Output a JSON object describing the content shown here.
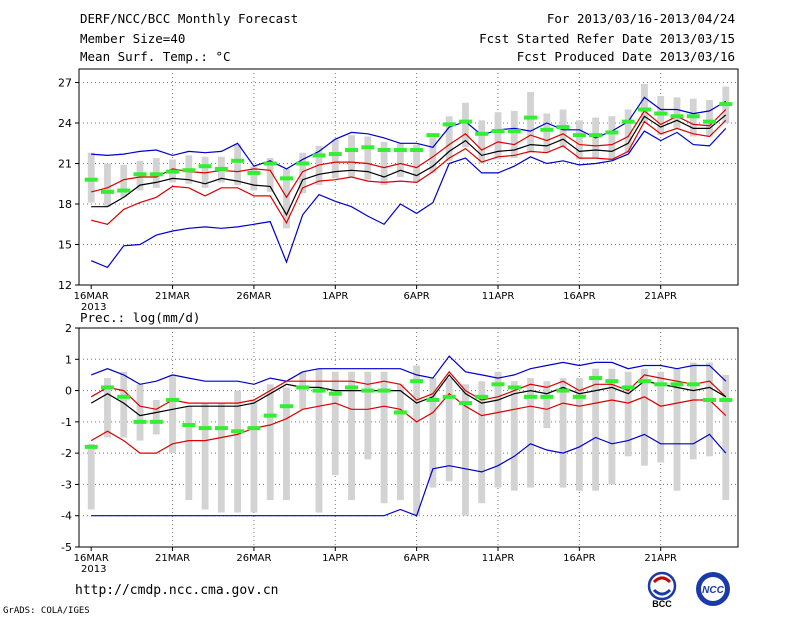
{
  "header": {
    "title": "DERF/NCC/BCC Monthly Forecast",
    "member_size": "Member Size=40",
    "variable_temp": "Mean Surf. Temp.: °C",
    "period": "For 2013/03/16-2013/04/24",
    "refer_date": "Fcst Started Refer Date 2013/03/15",
    "produced_date": "Fcst Produced Date 2013/03/16"
  },
  "footer": {
    "url": "http://cmdp.ncc.cma.gov.cn",
    "grads_credit": "GrADS: COLA/IGES",
    "logo_bcc_text": "BCC",
    "logo_ncc_text": "NCC"
  },
  "colors": {
    "box": "#d3d3d3",
    "median": "#33ee33",
    "mean": "#000000",
    "std": "#dd0000",
    "extreme": "#0000cc",
    "grid": "#777777"
  },
  "chart_data": [
    {
      "type": "line",
      "title": "Mean Surf. Temp.: °C",
      "x_tick_labels": [
        "16MAR\n2013",
        "21MAR",
        "26MAR",
        "1APR",
        "6APR",
        "11APR",
        "16APR",
        "21APR"
      ],
      "x_tick_days": [
        1,
        6,
        11,
        16,
        21,
        26,
        31,
        36
      ],
      "xlim": [
        1,
        40
      ],
      "ylim": [
        12,
        28
      ],
      "y_ticks": [
        12,
        15,
        18,
        21,
        24,
        27
      ],
      "days": [
        1,
        2,
        3,
        4,
        5,
        6,
        7,
        8,
        9,
        10,
        11,
        12,
        13,
        14,
        15,
        16,
        17,
        18,
        19,
        20,
        21,
        22,
        23,
        24,
        25,
        26,
        27,
        28,
        29,
        30,
        31,
        32,
        33,
        34,
        35,
        36,
        37,
        38,
        39,
        40
      ],
      "series": [
        {
          "name": "max",
          "values": [
            13.8,
            13.3,
            14.9,
            15.0,
            15.7,
            16.0,
            16.2,
            16.3,
            16.2,
            16.3,
            16.5,
            16.7,
            13.7,
            17.2,
            18.7,
            18.2,
            17.8,
            17.1,
            16.5,
            18.0,
            17.3,
            18.1,
            21.0,
            21.4,
            20.3,
            20.3,
            20.8,
            21.5,
            21.0,
            21.2,
            20.9,
            21.0,
            21.2,
            21.7,
            23.4,
            22.7,
            23.3,
            22.4,
            22.3,
            23.6
          ]
        },
        {
          "name": "mean_plus_std",
          "values": [
            18.9,
            19.2,
            19.8,
            20.0,
            20.0,
            20.6,
            20.4,
            20.3,
            20.5,
            20.4,
            20.6,
            20.5,
            18.5,
            20.4,
            20.9,
            21.1,
            21.1,
            21.0,
            20.7,
            21.0,
            20.7,
            21.5,
            22.4,
            23.2,
            22.0,
            22.6,
            22.4,
            23.1,
            22.7,
            23.2,
            22.4,
            22.3,
            22.4,
            23.0,
            24.9,
            23.9,
            24.5,
            23.9,
            23.8,
            25.0
          ]
        },
        {
          "name": "mean",
          "values": [
            17.8,
            17.8,
            18.5,
            19.4,
            19.6,
            19.9,
            19.8,
            19.5,
            19.9,
            19.7,
            19.4,
            19.3,
            17.2,
            19.8,
            20.2,
            20.4,
            20.5,
            20.4,
            20.0,
            20.5,
            20.1,
            20.8,
            21.9,
            22.7,
            21.6,
            21.9,
            22.0,
            22.4,
            22.3,
            22.8,
            21.9,
            22.0,
            21.9,
            22.5,
            24.5,
            23.7,
            24.2,
            23.6,
            23.6,
            24.6
          ]
        },
        {
          "name": "mean_minus_std",
          "values": [
            16.8,
            16.5,
            17.6,
            18.1,
            18.5,
            19.3,
            19.2,
            18.6,
            19.2,
            19.2,
            18.6,
            18.6,
            16.6,
            19.2,
            19.7,
            19.8,
            20.0,
            19.7,
            19.6,
            19.7,
            19.6,
            20.4,
            21.4,
            22.1,
            21.1,
            21.5,
            21.6,
            21.9,
            21.8,
            22.3,
            21.4,
            21.4,
            21.3,
            21.9,
            24.1,
            23.2,
            23.6,
            23.2,
            23.0,
            24.2
          ]
        },
        {
          "name": "min",
          "values": [
            21.7,
            21.6,
            21.7,
            21.9,
            22.0,
            21.6,
            21.9,
            21.8,
            21.9,
            22.5,
            20.8,
            21.2,
            20.6,
            21.3,
            21.9,
            22.8,
            23.3,
            23.2,
            22.9,
            22.5,
            22.5,
            22.2,
            23.7,
            24.1,
            23.1,
            23.5,
            23.6,
            23.4,
            24.0,
            23.5,
            23.5,
            22.9,
            23.4,
            24.1,
            25.9,
            25.0,
            25.0,
            24.7,
            24.9,
            25.6
          ]
        },
        {
          "name": "median",
          "values": [
            19.8,
            18.9,
            19.0,
            20.2,
            20.2,
            20.4,
            20.5,
            20.8,
            20.6,
            21.2,
            20.3,
            21.0,
            19.9,
            21.0,
            21.6,
            21.7,
            22.0,
            22.2,
            22.0,
            22.0,
            22.0,
            23.1,
            23.9,
            24.1,
            23.2,
            23.4,
            23.4,
            24.4,
            23.5,
            23.7,
            23.1,
            23.1,
            23.3,
            24.1,
            25.0,
            24.7,
            24.5,
            24.5,
            24.1,
            25.4
          ]
        },
        {
          "name": "box_low",
          "values": [
            18.1,
            17.8,
            18.5,
            19.0,
            19.2,
            19.6,
            19.5,
            19.2,
            19.6,
            19.4,
            19.0,
            18.9,
            16.2,
            18.8,
            19.4,
            19.9,
            20.0,
            19.8,
            19.4,
            20.0,
            19.6,
            20.3,
            21.2,
            22.2,
            21.0,
            21.3,
            21.4,
            21.8,
            21.8,
            22.2,
            21.3,
            21.4,
            21.2,
            21.8,
            24.0,
            23.1,
            23.6,
            23.0,
            23.0,
            24.0
          ]
        },
        {
          "name": "box_high",
          "values": [
            21.8,
            21.0,
            20.9,
            21.2,
            21.4,
            21.3,
            21.6,
            21.5,
            21.5,
            22.4,
            20.8,
            21.4,
            20.6,
            21.8,
            22.3,
            22.8,
            23.1,
            23.0,
            22.6,
            22.5,
            22.4,
            22.9,
            24.5,
            25.5,
            24.2,
            24.8,
            24.9,
            26.3,
            24.7,
            25.0,
            24.2,
            24.4,
            24.5,
            25.0,
            26.9,
            26.0,
            25.9,
            25.8,
            25.7,
            26.7
          ]
        }
      ]
    },
    {
      "type": "line",
      "title": "Prec.: log(mm/d)",
      "x_tick_labels": [
        "16MAR\n2013",
        "21MAR",
        "26MAR",
        "1APR",
        "6APR",
        "11APR",
        "16APR",
        "21APR"
      ],
      "x_tick_days": [
        1,
        6,
        11,
        16,
        21,
        26,
        31,
        36
      ],
      "xlim": [
        1,
        40
      ],
      "ylim": [
        -5,
        2
      ],
      "y_ticks": [
        -5,
        -4,
        -3,
        -2,
        -1,
        0,
        1,
        2
      ],
      "days": [
        1,
        2,
        3,
        4,
        5,
        6,
        7,
        8,
        9,
        10,
        11,
        12,
        13,
        14,
        15,
        16,
        17,
        18,
        19,
        20,
        21,
        22,
        23,
        24,
        25,
        26,
        27,
        28,
        29,
        30,
        31,
        32,
        33,
        34,
        35,
        36,
        37,
        38,
        39,
        40
      ],
      "series": [
        {
          "name": "max",
          "values": [
            0.5,
            0.7,
            0.5,
            0.2,
            0.3,
            0.5,
            0.4,
            0.3,
            0.3,
            0.3,
            0.2,
            0.4,
            0.3,
            0.6,
            0.7,
            0.7,
            0.7,
            0.7,
            0.7,
            0.7,
            0.5,
            0.4,
            1.1,
            0.6,
            0.5,
            0.4,
            0.5,
            0.7,
            0.8,
            0.9,
            0.8,
            0.9,
            0.9,
            0.7,
            0.8,
            0.8,
            0.7,
            0.8,
            0.8,
            0.3
          ]
        },
        {
          "name": "mean_plus_std",
          "values": [
            -0.2,
            0.1,
            0.0,
            -0.5,
            -0.6,
            -0.3,
            -0.4,
            -0.4,
            -0.4,
            -0.4,
            -0.3,
            0.0,
            0.3,
            0.3,
            0.3,
            0.3,
            0.3,
            0.2,
            0.3,
            0.2,
            -0.3,
            -0.1,
            0.6,
            0.0,
            -0.3,
            -0.2,
            0.0,
            0.2,
            0.1,
            0.3,
            0.0,
            0.2,
            0.2,
            0.0,
            0.5,
            0.4,
            0.3,
            0.2,
            0.3,
            -0.2
          ]
        },
        {
          "name": "mean",
          "values": [
            -0.4,
            -0.1,
            -0.4,
            -0.8,
            -0.7,
            -0.6,
            -0.5,
            -0.5,
            -0.5,
            -0.5,
            -0.4,
            -0.1,
            0.2,
            0.1,
            0.1,
            0.0,
            0.0,
            0.0,
            0.0,
            0.0,
            -0.4,
            -0.2,
            0.5,
            -0.1,
            -0.4,
            -0.3,
            -0.1,
            0.0,
            -0.1,
            0.1,
            -0.1,
            0.0,
            0.1,
            -0.1,
            0.3,
            0.2,
            0.1,
            0.0,
            0.1,
            -0.2
          ]
        },
        {
          "name": "mean_minus_std",
          "values": [
            -1.6,
            -1.3,
            -1.6,
            -2.0,
            -2.0,
            -1.7,
            -1.6,
            -1.6,
            -1.5,
            -1.4,
            -1.2,
            -1.1,
            -0.9,
            -0.6,
            -0.5,
            -0.4,
            -0.6,
            -0.6,
            -0.5,
            -0.6,
            -1.0,
            -0.7,
            -0.1,
            -0.5,
            -0.8,
            -0.7,
            -0.6,
            -0.5,
            -0.6,
            -0.4,
            -0.5,
            -0.4,
            -0.3,
            -0.4,
            -0.2,
            -0.5,
            -0.4,
            -0.3,
            -0.3,
            -0.8
          ]
        },
        {
          "name": "min",
          "values": [
            -4.0,
            -4.0,
            -4.0,
            -4.0,
            -4.0,
            -4.0,
            -4.0,
            -4.0,
            -4.0,
            -4.0,
            -4.0,
            -4.0,
            -4.0,
            -4.0,
            -4.0,
            -4.0,
            -4.0,
            -4.0,
            -4.0,
            -3.8,
            -4.0,
            -2.5,
            -2.4,
            -2.5,
            -2.6,
            -2.4,
            -2.1,
            -1.7,
            -1.9,
            -2.0,
            -1.8,
            -1.5,
            -1.7,
            -1.6,
            -1.4,
            -1.7,
            -1.7,
            -1.7,
            -1.4,
            -2.0
          ]
        },
        {
          "name": "median",
          "values": [
            -1.8,
            0.1,
            -0.2,
            -1.0,
            -1.0,
            -0.3,
            -1.1,
            -1.2,
            -1.2,
            -1.3,
            -1.2,
            -0.8,
            -0.5,
            0.1,
            0.0,
            -0.1,
            0.1,
            0.0,
            0.0,
            -0.7,
            0.3,
            -0.3,
            -0.2,
            -0.4,
            -0.2,
            0.2,
            0.1,
            -0.2,
            -0.2,
            0.0,
            -0.2,
            0.4,
            0.3,
            0.1,
            0.3,
            0.2,
            0.2,
            0.2,
            -0.3,
            -0.3
          ]
        },
        {
          "name": "box_low",
          "values": [
            -3.8,
            -1.5,
            -1.5,
            -1.6,
            -1.4,
            -2.0,
            -3.5,
            -3.8,
            -3.9,
            -3.9,
            -3.9,
            -3.5,
            -3.5,
            -0.6,
            -3.9,
            -2.7,
            -3.5,
            -2.2,
            -3.6,
            -3.5,
            -4.0,
            -3.1,
            -2.9,
            -4.0,
            -3.6,
            -3.1,
            -3.2,
            -3.1,
            -1.2,
            -3.1,
            -3.2,
            -3.2,
            -3.0,
            -2.1,
            -2.4,
            -2.3,
            -3.2,
            -2.2,
            -2.1,
            -3.5
          ]
        },
        {
          "name": "box_high",
          "values": [
            -1.7,
            0.4,
            0.6,
            0.2,
            -0.3,
            0.5,
            -0.5,
            -0.4,
            -0.4,
            0.0,
            -0.3,
            0.2,
            0.1,
            0.6,
            0.7,
            0.6,
            0.6,
            0.6,
            0.6,
            0.2,
            0.8,
            0.4,
            0.4,
            0.2,
            0.3,
            0.6,
            0.3,
            0.4,
            0.3,
            0.4,
            0.4,
            0.7,
            0.7,
            0.6,
            0.7,
            0.6,
            0.7,
            0.9,
            0.9,
            0.5
          ]
        }
      ]
    }
  ]
}
